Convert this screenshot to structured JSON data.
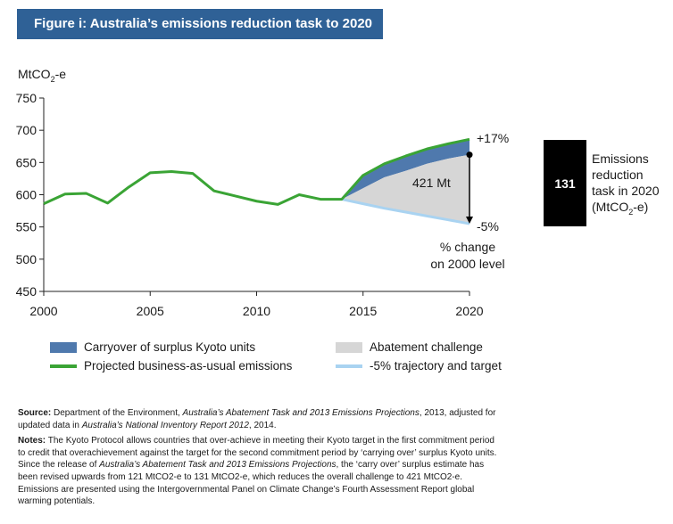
{
  "figure_title": "Figure i: Australia’s emissions reduction task to 2020",
  "colors": {
    "title_bg": "#2f6196",
    "bau": "#3aa435",
    "carryover": "#4f79ad",
    "abatement": "#d6d6d6",
    "trajectory": "#a9d3f1",
    "callout_box": "#000000"
  },
  "chart_data": {
    "type": "area",
    "ylabel": "MtCO2-e",
    "xlim": [
      2000,
      2020
    ],
    "ylim": [
      450,
      750
    ],
    "xticks": [
      2000,
      2005,
      2010,
      2015,
      2020
    ],
    "yticks": [
      450,
      500,
      550,
      600,
      650,
      700,
      750
    ],
    "grid": false,
    "series": [
      {
        "name": "Projected business-as-usual emissions",
        "type": "line",
        "x": [
          2000,
          2001,
          2002,
          2003,
          2004,
          2005,
          2006,
          2007,
          2008,
          2009,
          2010,
          2011,
          2012,
          2013,
          2014,
          2015,
          2016,
          2017,
          2018,
          2019,
          2020
        ],
        "values": [
          586,
          601,
          602,
          587,
          612,
          634,
          636,
          633,
          606,
          598,
          590,
          585,
          600,
          593,
          593,
          630,
          648,
          660,
          671,
          679,
          686
        ]
      },
      {
        "name": "Carryover of surplus Kyoto units",
        "type": "band",
        "x": [
          2014,
          2015,
          2016,
          2017,
          2018,
          2019,
          2020
        ],
        "lower": [
          593,
          610,
          627,
          637,
          648,
          656,
          662
        ],
        "upper": [
          593,
          630,
          648,
          660,
          671,
          679,
          686
        ]
      },
      {
        "name": "Abatement challenge",
        "type": "band",
        "x": [
          2014,
          2015,
          2016,
          2017,
          2018,
          2019,
          2020
        ],
        "lower": [
          593,
          586,
          579,
          573,
          567,
          561,
          555
        ],
        "upper": [
          593,
          610,
          627,
          637,
          648,
          656,
          662
        ]
      },
      {
        "name": "-5% trajectory and target",
        "type": "line",
        "x": [
          2014,
          2015,
          2016,
          2017,
          2018,
          2019,
          2020
        ],
        "values": [
          593,
          586,
          579,
          573,
          567,
          561,
          555
        ]
      }
    ],
    "annotations": {
      "abatement_label": "421 Mt",
      "plus_label": "+17%",
      "minus_label": "-5%",
      "change_label_1": "% change",
      "change_label_2": "on 2000 level",
      "callout_value": "131",
      "callout_text": [
        "Emissions",
        "reduction",
        "task in 2020",
        "(MtCO2-e)"
      ]
    }
  },
  "legend": [
    {
      "label": "Carryover of surplus Kyoto units",
      "kind": "box",
      "color": "#4f79ad"
    },
    {
      "label": "Abatement challenge",
      "kind": "box",
      "color": "#d6d6d6"
    },
    {
      "label": "Projected business-as-usual emissions",
      "kind": "line",
      "color": "#3aa435"
    },
    {
      "label": "-5% trajectory and target",
      "kind": "line",
      "color": "#a9d3f1"
    }
  ],
  "notes": {
    "source_label": "Source:",
    "source_a": " Department of the Environment, ",
    "source_b_italic": "Australia’s Abatement Task and 2013 Emissions Projections",
    "source_c": ", 2013, adjusted for updated data in ",
    "source_d_italic": "Australia’s National Inventory Report 2012",
    "source_e": ", 2014.",
    "notes_label": "Notes:",
    "notes_a": " The Kyoto Protocol allows countries that over-achieve in meeting their Kyoto target in the first commitment period to credit that overachievement against the target for the second commitment period by ‘carrying over’ surplus Kyoto units. Since the release of ",
    "notes_b_italic": "Australia’s Abatement Task and 2013 Emissions Projections",
    "notes_c": ", the ‘carry over’ surplus estimate has been revised upwards from 121 MtCO2-e to 131 MtCO2-e, which reduces the overall challenge to 421 MtCO2-e. Emissions are presented using the Intergovernmental Panel on Climate Change’s Fourth Assessment Report global warming potentials."
  }
}
